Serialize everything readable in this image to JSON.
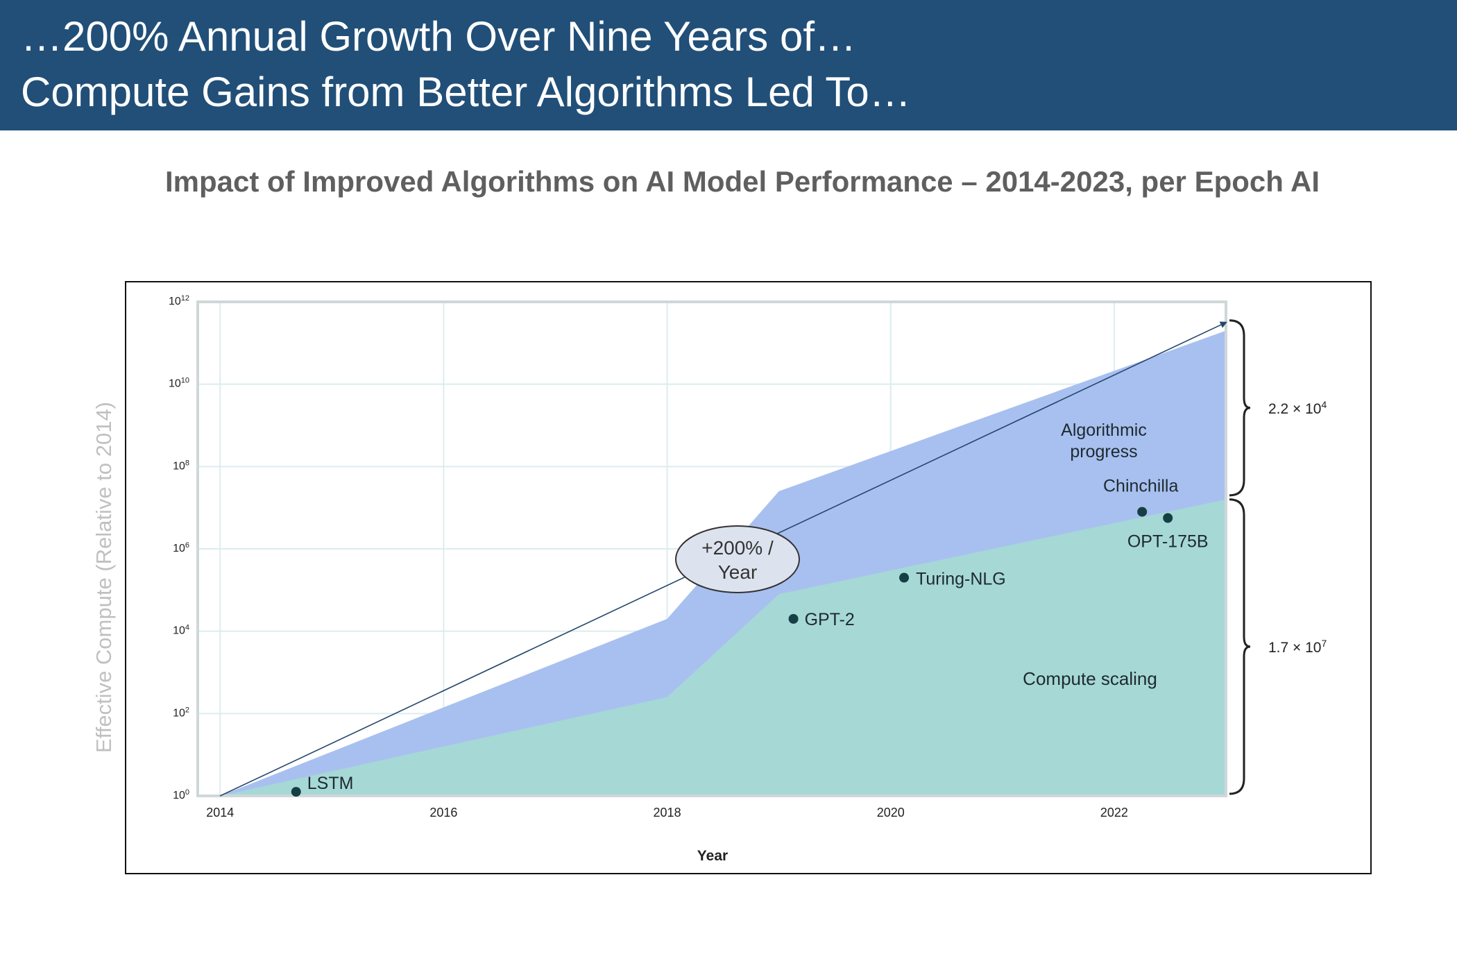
{
  "header": {
    "line1": "…200% Annual Growth Over Nine Years of…",
    "line2": "Compute Gains from Better Algorithms Led To…"
  },
  "chart_title": "Impact of Improved Algorithms on AI Model Performance – 2014-2023, per Epoch AI",
  "colors": {
    "header_bg": "#214f78",
    "algorithmic_fill": "#a8c0f0",
    "compute_fill": "#a6d8d6",
    "point": "#153f44"
  },
  "chart_data": {
    "type": "area",
    "title": "Impact of Improved Algorithms on AI Model Performance – 2014-2023, per Epoch AI",
    "xlabel": "Year",
    "ylabel": "Effective Compute (Relative to 2014)",
    "xlim": [
      2013.8,
      2023.0
    ],
    "ylim_log10": [
      0,
      12
    ],
    "x_ticks": [
      2014,
      2016,
      2018,
      2020,
      2022
    ],
    "y_ticks": [
      {
        "exp": 0,
        "base": "10",
        "sup": "0"
      },
      {
        "exp": 2,
        "base": "10",
        "sup": "2"
      },
      {
        "exp": 4,
        "base": "10",
        "sup": "4"
      },
      {
        "exp": 6,
        "base": "10",
        "sup": "6"
      },
      {
        "exp": 8,
        "base": "10",
        "sup": "8"
      },
      {
        "exp": 10,
        "base": "10",
        "sup": "10"
      },
      {
        "exp": 12,
        "base": "10",
        "sup": "12"
      }
    ],
    "grid": true,
    "series": [
      {
        "name": "Algorithmic progress",
        "x": [
          2014.0,
          2018.0,
          2019.0,
          2023.0
        ],
        "log10_y": [
          0.0,
          4.3,
          7.4,
          11.3
        ]
      },
      {
        "name": "Compute scaling",
        "x": [
          2014.0,
          2018.0,
          2019.0,
          2023.0
        ],
        "log10_y": [
          0.0,
          2.4,
          4.9,
          7.2
        ]
      }
    ],
    "points": [
      {
        "label": "LSTM",
        "x": 2014.68,
        "log10_y": 0.1
      },
      {
        "label": "GPT-2",
        "x": 2019.13,
        "log10_y": 4.3
      },
      {
        "label": "Turing-NLG",
        "x": 2020.12,
        "log10_y": 5.3
      },
      {
        "label": "Chinchilla",
        "x": 2022.25,
        "log10_y": 6.9
      },
      {
        "label": "OPT-175B",
        "x": 2022.48,
        "log10_y": 6.75
      }
    ],
    "trend": {
      "label_line1": "+200% /",
      "label_line2": "Year",
      "x": [
        2014.0,
        2023.0
      ],
      "log10_y": [
        0.0,
        11.5
      ]
    },
    "area_labels": {
      "algorithmic_line1": "Algorithmic",
      "algorithmic_line2": "progress",
      "compute": "Compute scaling"
    },
    "brackets": {
      "upper": {
        "base": "2.2 × 10",
        "sup": "4"
      },
      "lower": {
        "base": "1.7 × 10",
        "sup": "7"
      }
    }
  }
}
